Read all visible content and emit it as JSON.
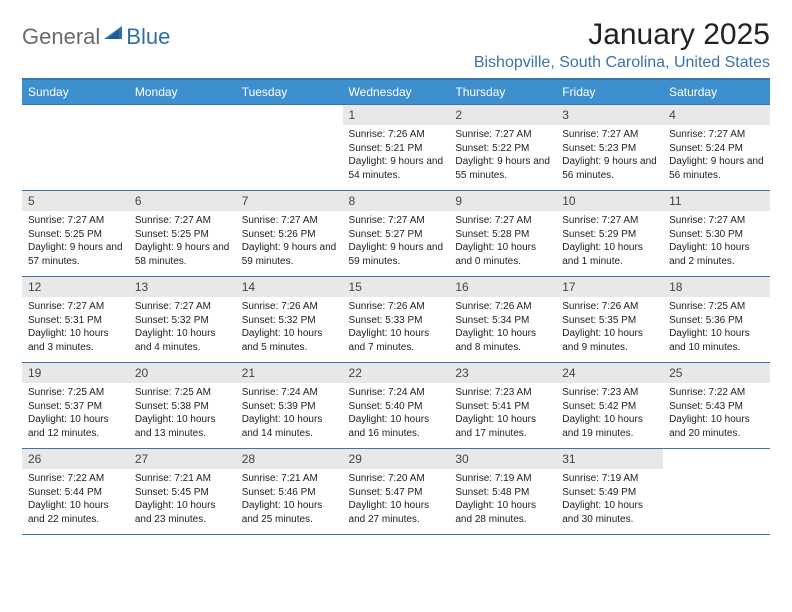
{
  "brand": {
    "part1": "General",
    "part2": "Blue"
  },
  "title": "January 2025",
  "location": "Bishopville, South Carolina, United States",
  "colors": {
    "header_bg": "#3e8fce",
    "header_text": "#ffffff",
    "border": "#3b74a8",
    "daynum_bg": "#e8e8e8",
    "text": "#222222",
    "location_text": "#3b74a8",
    "logo_gray": "#6b6b6b",
    "logo_blue": "#2f6fa8"
  },
  "typography": {
    "title_fontsize": 30,
    "location_fontsize": 16,
    "dow_fontsize": 12,
    "daynum_fontsize": 12,
    "detail_fontsize": 10
  },
  "day_labels": [
    "Sunday",
    "Monday",
    "Tuesday",
    "Wednesday",
    "Thursday",
    "Friday",
    "Saturday"
  ],
  "first_day_index": 3,
  "days": [
    {
      "n": 1,
      "sunrise": "7:26 AM",
      "sunset": "5:21 PM",
      "dl": "9 hours and 54 minutes."
    },
    {
      "n": 2,
      "sunrise": "7:27 AM",
      "sunset": "5:22 PM",
      "dl": "9 hours and 55 minutes."
    },
    {
      "n": 3,
      "sunrise": "7:27 AM",
      "sunset": "5:23 PM",
      "dl": "9 hours and 56 minutes."
    },
    {
      "n": 4,
      "sunrise": "7:27 AM",
      "sunset": "5:24 PM",
      "dl": "9 hours and 56 minutes."
    },
    {
      "n": 5,
      "sunrise": "7:27 AM",
      "sunset": "5:25 PM",
      "dl": "9 hours and 57 minutes."
    },
    {
      "n": 6,
      "sunrise": "7:27 AM",
      "sunset": "5:25 PM",
      "dl": "9 hours and 58 minutes."
    },
    {
      "n": 7,
      "sunrise": "7:27 AM",
      "sunset": "5:26 PM",
      "dl": "9 hours and 59 minutes."
    },
    {
      "n": 8,
      "sunrise": "7:27 AM",
      "sunset": "5:27 PM",
      "dl": "9 hours and 59 minutes."
    },
    {
      "n": 9,
      "sunrise": "7:27 AM",
      "sunset": "5:28 PM",
      "dl": "10 hours and 0 minutes."
    },
    {
      "n": 10,
      "sunrise": "7:27 AM",
      "sunset": "5:29 PM",
      "dl": "10 hours and 1 minute."
    },
    {
      "n": 11,
      "sunrise": "7:27 AM",
      "sunset": "5:30 PM",
      "dl": "10 hours and 2 minutes."
    },
    {
      "n": 12,
      "sunrise": "7:27 AM",
      "sunset": "5:31 PM",
      "dl": "10 hours and 3 minutes."
    },
    {
      "n": 13,
      "sunrise": "7:27 AM",
      "sunset": "5:32 PM",
      "dl": "10 hours and 4 minutes."
    },
    {
      "n": 14,
      "sunrise": "7:26 AM",
      "sunset": "5:32 PM",
      "dl": "10 hours and 5 minutes."
    },
    {
      "n": 15,
      "sunrise": "7:26 AM",
      "sunset": "5:33 PM",
      "dl": "10 hours and 7 minutes."
    },
    {
      "n": 16,
      "sunrise": "7:26 AM",
      "sunset": "5:34 PM",
      "dl": "10 hours and 8 minutes."
    },
    {
      "n": 17,
      "sunrise": "7:26 AM",
      "sunset": "5:35 PM",
      "dl": "10 hours and 9 minutes."
    },
    {
      "n": 18,
      "sunrise": "7:25 AM",
      "sunset": "5:36 PM",
      "dl": "10 hours and 10 minutes."
    },
    {
      "n": 19,
      "sunrise": "7:25 AM",
      "sunset": "5:37 PM",
      "dl": "10 hours and 12 minutes."
    },
    {
      "n": 20,
      "sunrise": "7:25 AM",
      "sunset": "5:38 PM",
      "dl": "10 hours and 13 minutes."
    },
    {
      "n": 21,
      "sunrise": "7:24 AM",
      "sunset": "5:39 PM",
      "dl": "10 hours and 14 minutes."
    },
    {
      "n": 22,
      "sunrise": "7:24 AM",
      "sunset": "5:40 PM",
      "dl": "10 hours and 16 minutes."
    },
    {
      "n": 23,
      "sunrise": "7:23 AM",
      "sunset": "5:41 PM",
      "dl": "10 hours and 17 minutes."
    },
    {
      "n": 24,
      "sunrise": "7:23 AM",
      "sunset": "5:42 PM",
      "dl": "10 hours and 19 minutes."
    },
    {
      "n": 25,
      "sunrise": "7:22 AM",
      "sunset": "5:43 PM",
      "dl": "10 hours and 20 minutes."
    },
    {
      "n": 26,
      "sunrise": "7:22 AM",
      "sunset": "5:44 PM",
      "dl": "10 hours and 22 minutes."
    },
    {
      "n": 27,
      "sunrise": "7:21 AM",
      "sunset": "5:45 PM",
      "dl": "10 hours and 23 minutes."
    },
    {
      "n": 28,
      "sunrise": "7:21 AM",
      "sunset": "5:46 PM",
      "dl": "10 hours and 25 minutes."
    },
    {
      "n": 29,
      "sunrise": "7:20 AM",
      "sunset": "5:47 PM",
      "dl": "10 hours and 27 minutes."
    },
    {
      "n": 30,
      "sunrise": "7:19 AM",
      "sunset": "5:48 PM",
      "dl": "10 hours and 28 minutes."
    },
    {
      "n": 31,
      "sunrise": "7:19 AM",
      "sunset": "5:49 PM",
      "dl": "10 hours and 30 minutes."
    }
  ],
  "labels": {
    "sunrise": "Sunrise:",
    "sunset": "Sunset:",
    "daylight": "Daylight:"
  }
}
